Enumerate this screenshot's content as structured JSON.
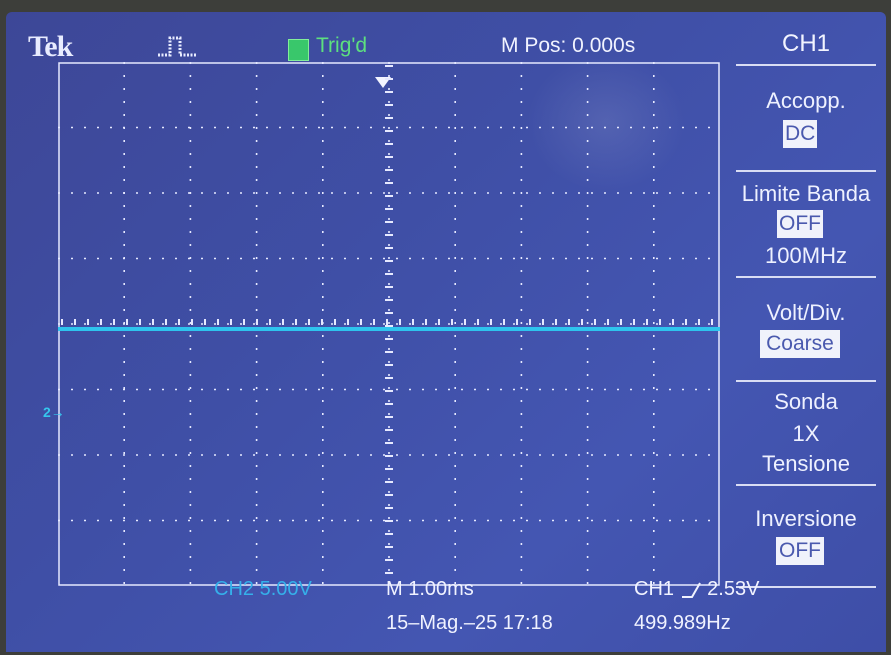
{
  "header": {
    "brand": "Tek",
    "trigger_status": "Trig'd",
    "horizontal_position": "M Pos: 0.000s"
  },
  "side_menu": {
    "channel": "CH1",
    "items": [
      {
        "label": "Accopp.",
        "value": "DC"
      },
      {
        "label": "Limite Banda",
        "value": "OFF",
        "extra": "100MHz"
      },
      {
        "label": "Volt/Div.",
        "value": "Coarse"
      },
      {
        "label": "Sonda",
        "value": "1X",
        "extra": "Tensione"
      },
      {
        "label": "Inversione",
        "value": "OFF"
      }
    ]
  },
  "waveform": {
    "ch2_marker": "2→"
  },
  "footer": {
    "ch2_scale": "CH2  5.00V",
    "timebase": "M 1.00ms",
    "trigger_source": "CH1",
    "trigger_level": "2.53V",
    "datetime": "15–Mag.–25 17:18",
    "frequency": "499.989Hz"
  },
  "colors": {
    "screen": "#3f4fa6",
    "trace": "#2ec4ee",
    "grid": "#e6e9ff",
    "trig": "#5de07f"
  }
}
